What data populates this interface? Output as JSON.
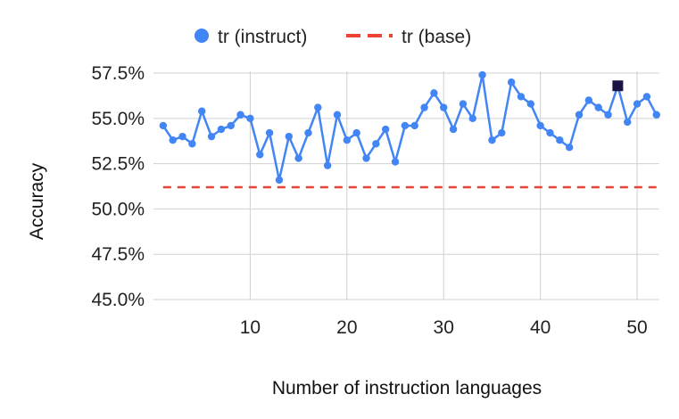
{
  "chart_data": {
    "type": "line",
    "xlabel": "Number of instruction languages",
    "ylabel": "Accuracy",
    "x_ticks": [
      10,
      20,
      30,
      40,
      50
    ],
    "y_ticks": [
      0.45,
      0.475,
      0.5,
      0.525,
      0.55,
      0.575
    ],
    "y_tick_labels": [
      "45.0%",
      "47.5%",
      "50.0%",
      "52.5%",
      "55.0%",
      "57.5%"
    ],
    "xlim": [
      0,
      52.3
    ],
    "ylim": [
      0.45,
      0.576
    ],
    "grid": true,
    "legend_position": "top",
    "series": [
      {
        "name": "tr (instruct)",
        "style": "line-markers",
        "color": "#4285f4",
        "x": [
          1,
          2,
          3,
          4,
          5,
          6,
          7,
          8,
          9,
          10,
          11,
          12,
          13,
          14,
          15,
          16,
          17,
          18,
          19,
          20,
          21,
          22,
          23,
          24,
          25,
          26,
          27,
          28,
          29,
          30,
          31,
          32,
          33,
          34,
          35,
          36,
          37,
          38,
          39,
          40,
          41,
          42,
          43,
          44,
          45,
          46,
          47,
          48,
          49,
          50,
          51,
          52
        ],
        "values": [
          0.546,
          0.538,
          0.54,
          0.536,
          0.554,
          0.54,
          0.544,
          0.546,
          0.552,
          0.55,
          0.53,
          0.542,
          0.516,
          0.54,
          0.528,
          0.542,
          0.556,
          0.524,
          0.552,
          0.538,
          0.542,
          0.528,
          0.536,
          0.544,
          0.526,
          0.546,
          0.546,
          0.556,
          0.564,
          0.556,
          0.544,
          0.558,
          0.55,
          0.574,
          0.538,
          0.542,
          0.57,
          0.562,
          0.558,
          0.546,
          0.542,
          0.538,
          0.534,
          0.552,
          0.56,
          0.556,
          0.552,
          0.568,
          0.548,
          0.558,
          0.562,
          0.552
        ]
      },
      {
        "name": "tr (base)",
        "style": "dashed",
        "color": "#ea4335",
        "value": 0.512
      }
    ],
    "highlight": {
      "x": 48,
      "value": 0.568,
      "color": "#1a1446"
    }
  }
}
